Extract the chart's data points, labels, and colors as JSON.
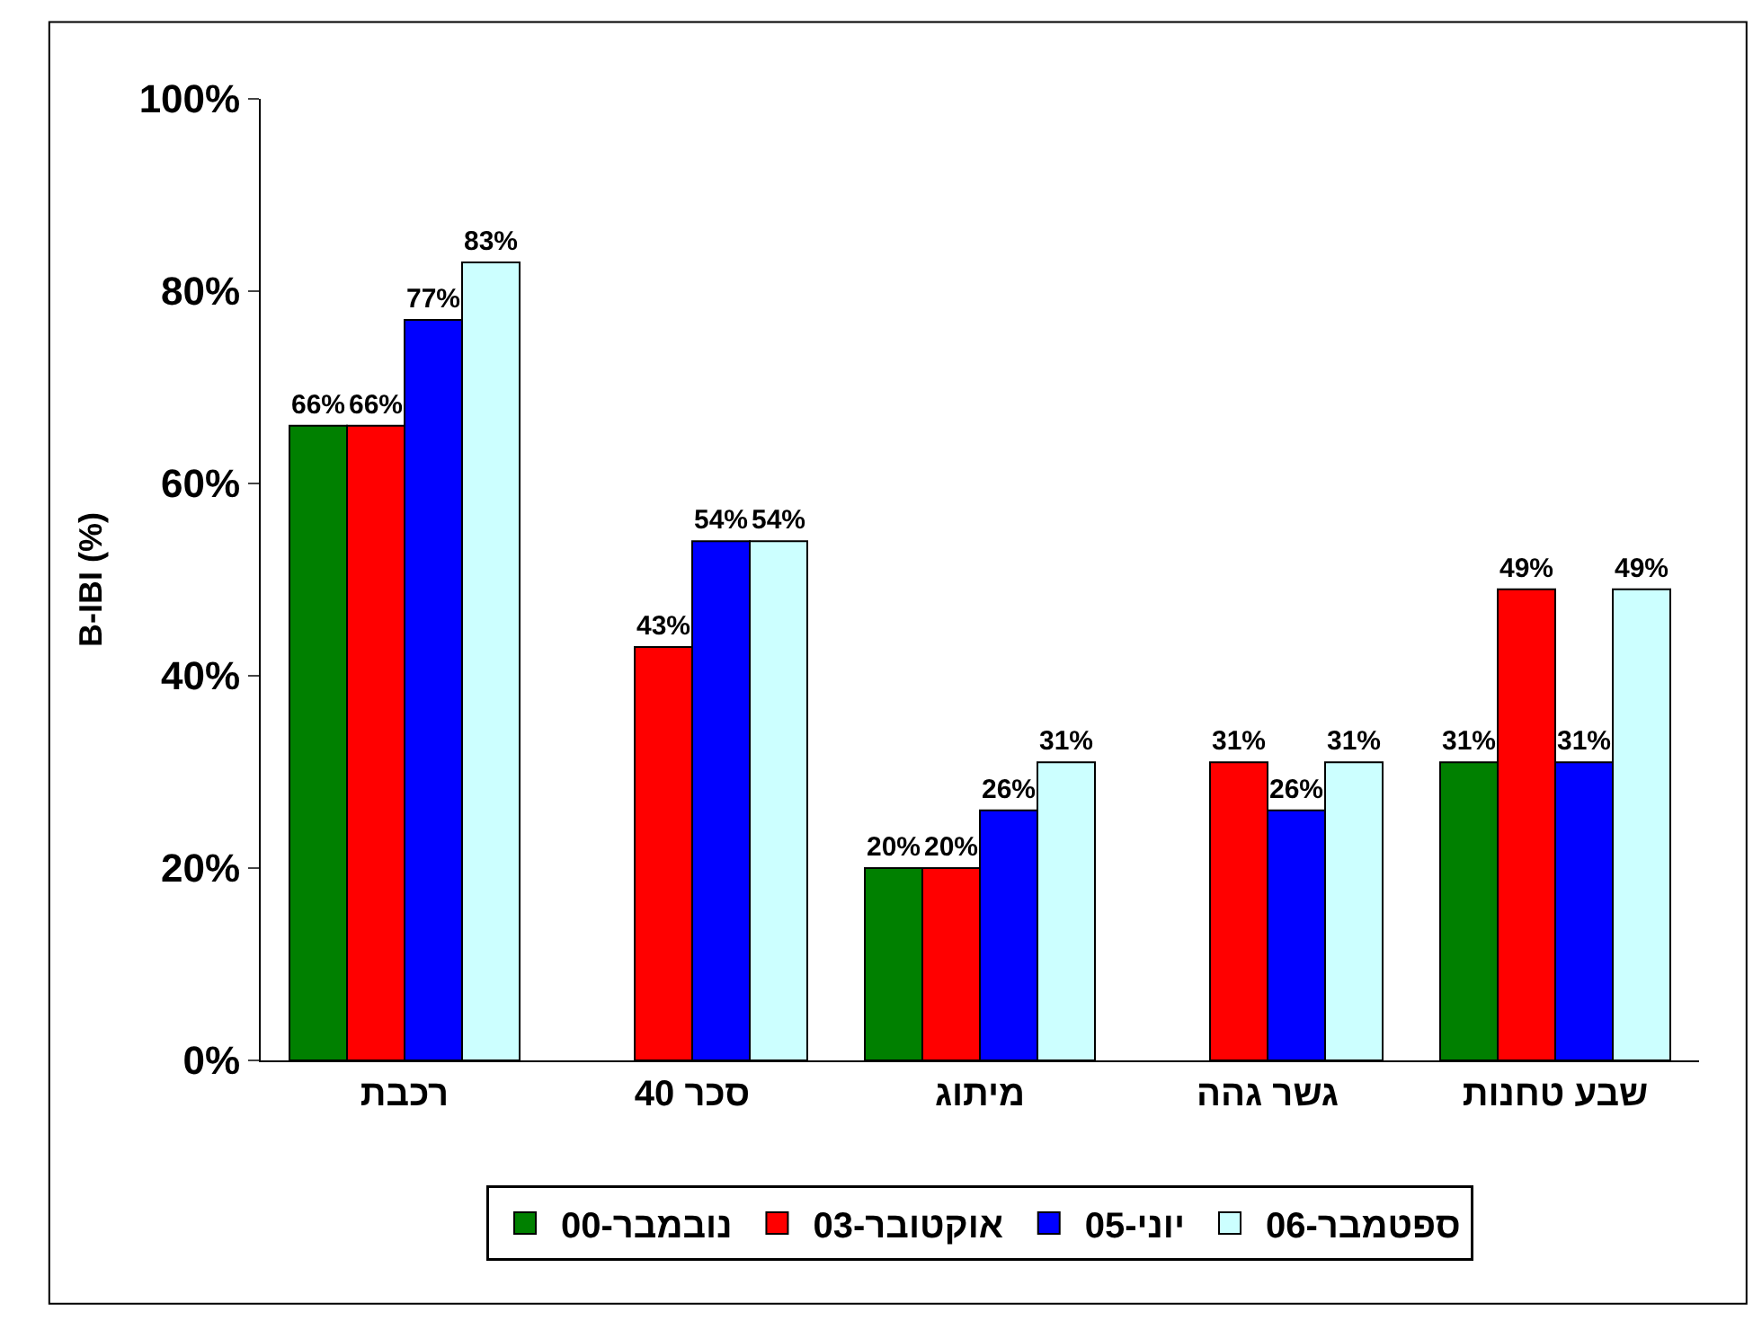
{
  "chart_data": {
    "type": "bar",
    "ylabel": "B-IBI (%)",
    "categories": [
      "רכבת",
      "סכר 40",
      "מיתוג",
      "גשר גהה",
      "שבע טחנות"
    ],
    "series": [
      {
        "name": "נובמבר-00",
        "color": "#008000",
        "values": [
          66,
          null,
          20,
          null,
          31
        ],
        "value_labels": [
          "66%",
          null,
          "20%",
          null,
          "31%"
        ]
      },
      {
        "name": "אוקטובר-03",
        "color": "#ff0000",
        "values": [
          66,
          43,
          20,
          31,
          49
        ],
        "value_labels": [
          "66%",
          "43%",
          "20%",
          "31%",
          "49%"
        ]
      },
      {
        "name": "יוני-05",
        "color": "#0000ff",
        "values": [
          77,
          54,
          26,
          26,
          31
        ],
        "value_labels": [
          "77%",
          "54%",
          "26%",
          "26%",
          "31%"
        ]
      },
      {
        "name": "ספטמבר-06",
        "color": "#ccffff",
        "values": [
          83,
          54,
          31,
          31,
          49
        ],
        "value_labels": [
          "83%",
          "54%",
          "31%",
          "31%",
          "49%"
        ]
      }
    ],
    "ylim": [
      0,
      100
    ],
    "yticks": [
      {
        "value": 0,
        "label": "0%"
      },
      {
        "value": 20,
        "label": "20%"
      },
      {
        "value": 40,
        "label": "40%"
      },
      {
        "value": 60,
        "label": "60%"
      },
      {
        "value": 80,
        "label": "80%"
      },
      {
        "value": 100,
        "label": "100%"
      }
    ],
    "legend": "bottom"
  }
}
